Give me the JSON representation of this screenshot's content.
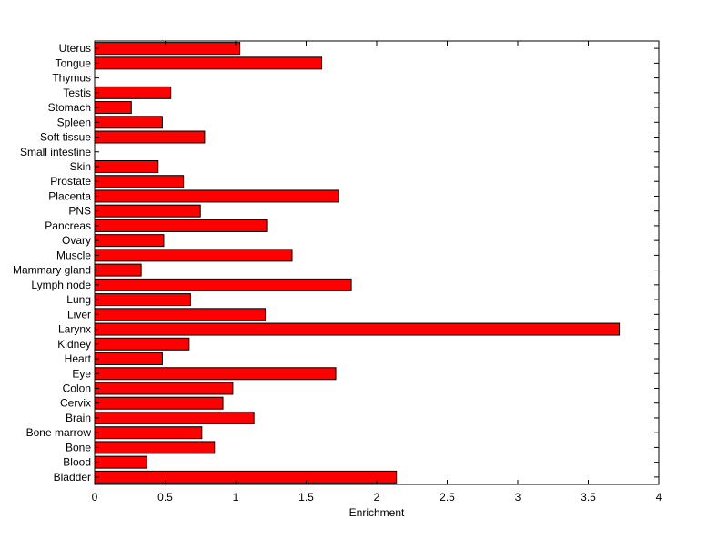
{
  "chart_data": {
    "type": "bar",
    "orientation": "horizontal",
    "title": "",
    "xlabel": "Enrichment",
    "ylabel": "",
    "xlim": [
      0,
      4
    ],
    "xticks": [
      0,
      0.5,
      1,
      1.5,
      2,
      2.5,
      3,
      3.5,
      4
    ],
    "xtick_labels": [
      "0",
      "0.5",
      "1",
      "1.5",
      "2",
      "2.5",
      "3",
      "3.5",
      "4"
    ],
    "grid": false,
    "bar_color": "#ff0000",
    "categories": [
      "Bladder",
      "Blood",
      "Bone",
      "Bone marrow",
      "Brain",
      "Cervix",
      "Colon",
      "Eye",
      "Heart",
      "Kidney",
      "Larynx",
      "Liver",
      "Lung",
      "Lymph node",
      "Mammary gland",
      "Muscle",
      "Ovary",
      "Pancreas",
      "PNS",
      "Placenta",
      "Prostate",
      "Skin",
      "Small intestine",
      "Soft tissue",
      "Spleen",
      "Stomach",
      "Testis",
      "Thymus",
      "Tongue",
      "Uterus"
    ],
    "values": [
      2.14,
      0.37,
      0.85,
      0.76,
      1.13,
      0.91,
      0.98,
      1.71,
      0.48,
      0.67,
      3.72,
      1.21,
      0.68,
      1.82,
      0.33,
      1.4,
      0.49,
      1.22,
      0.75,
      1.73,
      0.63,
      0.45,
      0.0,
      0.78,
      0.48,
      0.26,
      0.54,
      0.0,
      1.61,
      1.03
    ]
  }
}
